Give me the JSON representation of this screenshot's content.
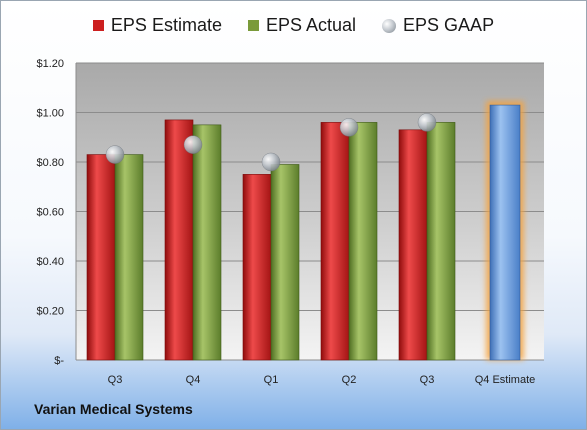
{
  "chart_data": {
    "type": "bar",
    "categories": [
      "Q3",
      "Q4",
      "Q1",
      "Q2",
      "Q3",
      "Q4 Estimate"
    ],
    "series": [
      {
        "name": "EPS Estimate",
        "values": [
          0.83,
          0.97,
          0.75,
          0.96,
          0.93,
          null
        ]
      },
      {
        "name": "EPS Actual",
        "values": [
          0.83,
          0.95,
          0.79,
          0.96,
          0.96,
          null
        ]
      },
      {
        "name": "EPS GAAP",
        "values": [
          0.83,
          0.87,
          0.8,
          0.94,
          0.96,
          null
        ]
      },
      {
        "name": "",
        "values": [
          null,
          null,
          null,
          null,
          null,
          1.03
        ]
      }
    ],
    "yticks": [
      "$-",
      "$0.20",
      "$0.40",
      "$0.60",
      "$0.80",
      "$1.00",
      "$1.20"
    ],
    "ylim": [
      0,
      1.2
    ],
    "grid": true,
    "legend_position": "top",
    "colors": {
      "estimate": "#cc1f1f",
      "actual": "#7a9a3a",
      "gaap": "#b8bcc2",
      "forecast": "#5b8fd6",
      "forecast_glow": "#f4a340"
    }
  },
  "legend": {
    "estimate_label": "EPS Estimate",
    "actual_label": "EPS Actual",
    "gaap_label": "EPS GAAP"
  },
  "footer": {
    "company": "Varian Medical Systems"
  }
}
